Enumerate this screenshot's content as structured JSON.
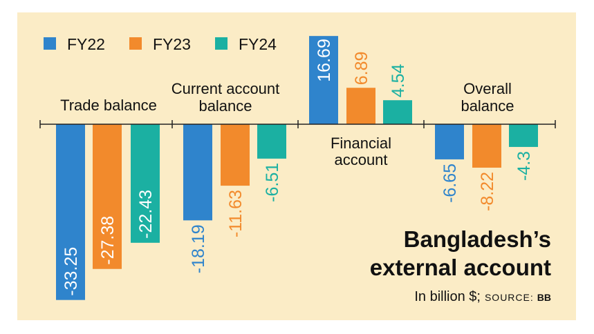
{
  "chart_data": {
    "type": "bar",
    "title": "Bangladesh's external account",
    "subtitle": "In billion $;",
    "source_label": "SOURCE:",
    "source_value": "BB",
    "categories": [
      "Trade balance",
      "Current account balance",
      "Financial account",
      "Overall balance"
    ],
    "category_lines": [
      [
        "Trade balance"
      ],
      [
        "Current account",
        "balance"
      ],
      [
        "Financial",
        "account"
      ],
      [
        "Overall",
        "balance"
      ]
    ],
    "series": [
      {
        "name": "FY22",
        "color": "#2f84cc",
        "values": [
          -33.25,
          -18.19,
          16.69,
          -6.65
        ]
      },
      {
        "name": "FY23",
        "color": "#f28a2c",
        "values": [
          -27.38,
          -11.63,
          6.89,
          -8.22
        ]
      },
      {
        "name": "FY24",
        "color": "#1bb0a2",
        "values": [
          -22.43,
          -6.51,
          4.54,
          -4.3
        ]
      }
    ],
    "value_labels": [
      [
        "-33.25",
        "-18.19",
        "16.69",
        "-6.65"
      ],
      [
        "-27.38",
        "-11.63",
        "6.89",
        "-8.22"
      ],
      [
        "-22.43",
        "-6.51",
        "4.54",
        "-4.3"
      ]
    ],
    "legend_position": "top-left",
    "grid": false
  }
}
